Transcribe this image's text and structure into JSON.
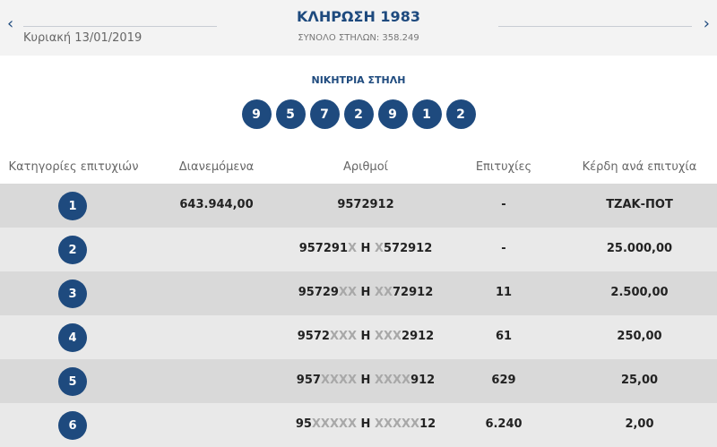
{
  "header": {
    "title": "ΚΛΗΡΩΣΗ 1983",
    "date": "Κυριακή 13/01/2019",
    "total": "ΣΥΝΟΛΟ ΣΤΗΛΩΝ: 358.249",
    "prev": "‹",
    "next": "›"
  },
  "winning": {
    "label": "ΝΙΚΗΤΡΙΑ ΣΤΗΛΗ",
    "digits": [
      "9",
      "5",
      "7",
      "2",
      "9",
      "1",
      "2"
    ]
  },
  "table": {
    "headers": [
      "Κατηγορίες επιτυχιών",
      "Διανεμόμενα",
      "Αριθμοί",
      "Επιτυχίες",
      "Κέρδη ανά επιτυχία"
    ],
    "rows": [
      {
        "cat": "1",
        "dist": "643.944,00",
        "n": [
          "9572912",
          "",
          "",
          "",
          ""
        ],
        "hits": "-",
        "prize": "ΤΖΑΚ-ΠΟΤ"
      },
      {
        "cat": "2",
        "dist": "",
        "n": [
          "957291",
          "X",
          " Η ",
          "X",
          "572912"
        ],
        "hits": "-",
        "prize": "25.000,00"
      },
      {
        "cat": "3",
        "dist": "",
        "n": [
          "95729",
          "XX",
          " Η ",
          "XX",
          "72912"
        ],
        "hits": "11",
        "prize": "2.500,00"
      },
      {
        "cat": "4",
        "dist": "",
        "n": [
          "9572",
          "XXX",
          " Η ",
          "XXX",
          "2912"
        ],
        "hits": "61",
        "prize": "250,00"
      },
      {
        "cat": "5",
        "dist": "",
        "n": [
          "957",
          "XXXX",
          " Η ",
          "XXXX",
          "912"
        ],
        "hits": "629",
        "prize": "25,00"
      },
      {
        "cat": "6",
        "dist": "",
        "n": [
          "95",
          "XXXXX",
          " Η ",
          "XXXXX",
          "12"
        ],
        "hits": "6.240",
        "prize": "2,00"
      }
    ]
  },
  "colors": {
    "accent": "#1e4a7e",
    "row_odd": "#d9d9d9",
    "row_even": "#e9e9e9"
  }
}
